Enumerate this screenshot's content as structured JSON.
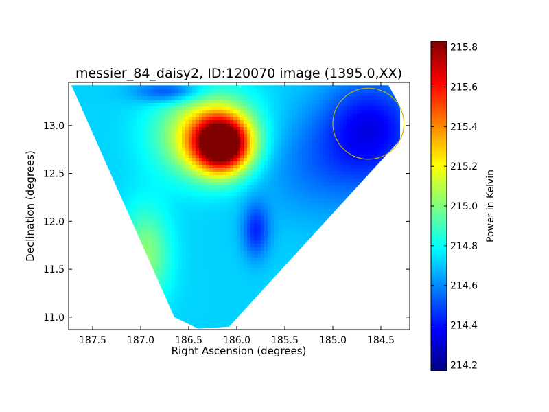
{
  "chart_data": {
    "type": "heatmap",
    "title": "messier_84_daisy2, ID:120070 image (1395.0,XX)",
    "xlabel": "Right Ascension (degrees)",
    "ylabel": "Declination (degrees)",
    "xlim": [
      187.75,
      184.2
    ],
    "ylim": [
      10.87,
      13.45
    ],
    "xticks": [
      187.5,
      187.0,
      186.5,
      186.0,
      185.5,
      185.0,
      184.5
    ],
    "xtick_labels": [
      "187.5",
      "187.0",
      "186.5",
      "186.0",
      "185.5",
      "185.0",
      "184.5"
    ],
    "yticks": [
      11.0,
      11.5,
      12.0,
      12.5,
      13.0
    ],
    "ytick_labels": [
      "11.0",
      "11.5",
      "12.0",
      "12.5",
      "13.0"
    ],
    "colorbar": {
      "label": "Power in Kelvin",
      "colormap": "jet",
      "range": [
        214.17,
        215.83
      ],
      "ticks": [
        214.2,
        214.4,
        214.6,
        214.8,
        215.0,
        215.2,
        215.4,
        215.6,
        215.8
      ],
      "tick_labels": [
        "214.2",
        "214.4",
        "214.6",
        "214.8",
        "215.0",
        "215.2",
        "215.4",
        "215.6",
        "215.8"
      ]
    },
    "coverage_polygon": [
      [
        187.72,
        13.42
      ],
      [
        184.42,
        13.42
      ],
      [
        184.3,
        13.2
      ],
      [
        184.3,
        12.85
      ],
      [
        186.08,
        10.9
      ],
      [
        186.4,
        10.88
      ],
      [
        186.65,
        11.0
      ]
    ],
    "base_level": 214.72,
    "features": [
      {
        "name": "hot spot",
        "ra": 186.15,
        "dec": 12.8,
        "value": 215.83,
        "ra_sigma": 0.2,
        "dec_sigma": 0.2
      },
      {
        "name": "warm region",
        "ra": 186.3,
        "dec": 12.9,
        "value": 215.3,
        "ra_sigma": 0.35,
        "dec_sigma": 0.3
      },
      {
        "name": "cool region",
        "ra": 184.6,
        "dec": 13.02,
        "value": 214.42,
        "ra_sigma": 0.35,
        "dec_sigma": 0.35
      },
      {
        "name": "cool region",
        "ra": 185.0,
        "dec": 12.6,
        "value": 214.55,
        "ra_sigma": 0.6,
        "dec_sigma": 0.4
      },
      {
        "name": "cool streak",
        "ra": 185.8,
        "dec": 11.9,
        "value": 214.45,
        "ra_sigma": 0.1,
        "dec_sigma": 0.2
      },
      {
        "name": "cool streak",
        "ra": 186.7,
        "dec": 13.35,
        "value": 214.45,
        "ra_sigma": 0.25,
        "dec_sigma": 0.08
      },
      {
        "name": "warm edge",
        "ra": 186.95,
        "dec": 11.65,
        "value": 215.02,
        "ra_sigma": 0.18,
        "dec_sigma": 0.35
      }
    ],
    "circle": {
      "ra": 184.63,
      "dec": 13.02,
      "radius_deg": 0.37,
      "color": "#c8b400"
    }
  }
}
